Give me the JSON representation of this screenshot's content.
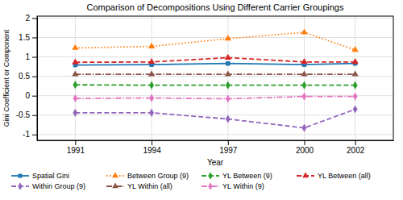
{
  "chart_data": {
    "type": "line",
    "title": "Comparison of Decompositions Using Different Carrier Groupings",
    "xlabel": "Year",
    "ylabel": "Gini Coefficient or Component",
    "x": [
      1991,
      1994,
      1997,
      2000,
      2002
    ],
    "series": [
      {
        "name": "Spatial Gini",
        "values": [
          0.79,
          0.8,
          0.83,
          0.8,
          0.83
        ],
        "marker": "square",
        "line_style": "solid"
      },
      {
        "name": "Between Group (9)",
        "values": [
          1.23,
          1.27,
          1.47,
          1.63,
          1.18
        ],
        "marker": "triangle",
        "line_style": "dotted"
      },
      {
        "name": "YL Between (9)",
        "values": [
          0.28,
          0.27,
          0.27,
          0.27,
          0.27
        ],
        "marker": "diamond",
        "line_style": "dashed"
      },
      {
        "name": "YL Between (all)",
        "values": [
          0.86,
          0.87,
          0.98,
          0.87,
          0.87
        ],
        "marker": "triangle",
        "line_style": "dashed"
      },
      {
        "name": "Within Group (9)",
        "values": [
          -0.44,
          -0.44,
          -0.6,
          -0.83,
          -0.35
        ],
        "marker": "diamond",
        "line_style": "dashed"
      },
      {
        "name": "YL Within (all)",
        "values": [
          0.55,
          0.55,
          0.55,
          0.55,
          0.55
        ],
        "marker": "triangle",
        "line_style": "dashdot"
      },
      {
        "name": "YL Within (9)",
        "values": [
          -0.07,
          -0.06,
          -0.08,
          -0.02,
          -0.02
        ],
        "marker": "diamond",
        "line_style": "dashdot"
      }
    ],
    "xlim": [
      1989.5,
      2003.5
    ],
    "xticks": [
      1991,
      1994,
      1997,
      2000,
      2002
    ],
    "ylim": [
      -1.15,
      2.05
    ],
    "yticks": [
      -1,
      -0.5,
      0,
      0.5,
      1,
      1.5,
      2
    ],
    "grid": true,
    "legend": "bottom"
  }
}
